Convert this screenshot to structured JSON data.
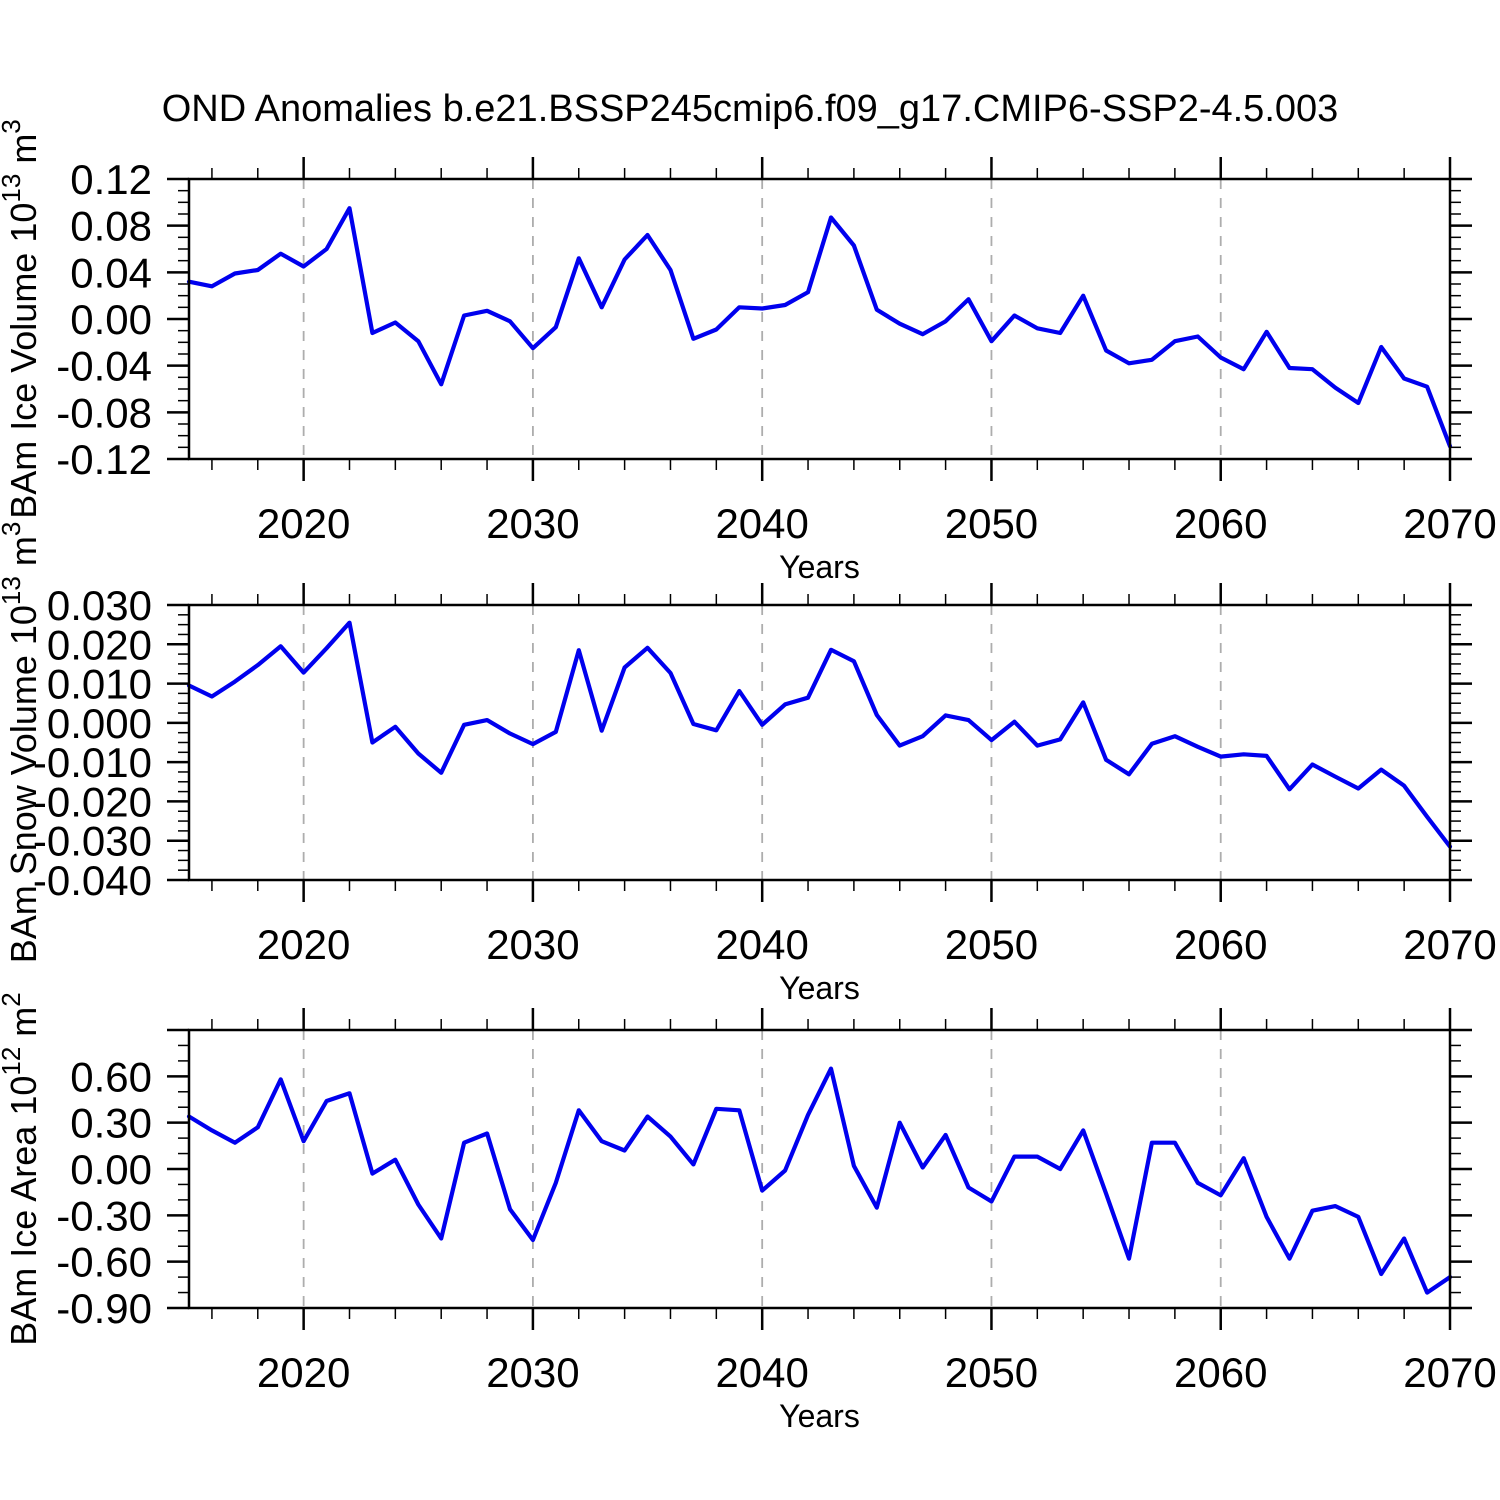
{
  "chart_data": {
    "type": "line",
    "title": "OND Anomalies b.e21.BSSP245cmip6.f09_g17.CMIP6-SSP2-4.5.003",
    "line_color": "#0000EE",
    "grid_color": "#ADADAD",
    "axis_color": "#000000",
    "legend": "none",
    "grid": "vertical-dashed-at-decades",
    "x": {
      "label": "Years",
      "start_year": 2015,
      "end_year": 2070,
      "major_tick_step": 10,
      "minor_tick_step": 2,
      "tick_labels": [
        "2020",
        "2030",
        "2040",
        "2050",
        "2060",
        "2070"
      ],
      "gridlines_at": [
        2020,
        2030,
        2040,
        2050,
        2060
      ]
    },
    "panels": [
      {
        "name": "ice-volume",
        "ylabel_parts": [
          {
            "t": "BAm Ice Volume 10"
          },
          {
            "t": "13",
            "sup": true
          },
          {
            "t": " m"
          },
          {
            "t": "3",
            "sup": true
          }
        ],
        "ymin": -0.12,
        "ymax": 0.12,
        "ytick_minor": 0.01,
        "ytick_major": 0.04,
        "ytick_labels": [
          {
            "v": 0.12,
            "label": "0.12"
          },
          {
            "v": 0.08,
            "label": "0.08"
          },
          {
            "v": 0.04,
            "label": "0.04"
          },
          {
            "v": 0.0,
            "label": "0.00"
          },
          {
            "v": -0.04,
            "label": "-0.04"
          },
          {
            "v": -0.08,
            "label": "-0.08"
          },
          {
            "v": -0.12,
            "label": "-0.12"
          }
        ],
        "values": [
          0.032,
          0.028,
          0.039,
          0.042,
          0.056,
          0.045,
          0.06,
          0.095,
          -0.012,
          -0.003,
          -0.019,
          -0.056,
          0.003,
          0.007,
          -0.002,
          -0.025,
          -0.007,
          0.052,
          0.01,
          0.051,
          0.072,
          0.042,
          -0.017,
          -0.009,
          0.01,
          0.009,
          0.012,
          0.023,
          0.087,
          0.063,
          0.008,
          -0.004,
          -0.013,
          -0.002,
          0.017,
          -0.019,
          0.003,
          -0.008,
          -0.012,
          0.02,
          -0.027,
          -0.038,
          -0.035,
          -0.019,
          -0.015,
          -0.033,
          -0.043,
          -0.011,
          -0.042,
          -0.043,
          -0.059,
          -0.072,
          -0.024,
          -0.051,
          -0.058,
          -0.109
        ]
      },
      {
        "name": "snow-volume",
        "ylabel_parts": [
          {
            "t": "BAm Snow Volume 10"
          },
          {
            "t": "13",
            "sup": true
          },
          {
            "t": " m"
          },
          {
            "t": "3",
            "sup": true
          }
        ],
        "ymin": -0.04,
        "ymax": 0.03,
        "ytick_minor": 0.0025,
        "ytick_major": 0.01,
        "ytick_labels": [
          {
            "v": 0.03,
            "label": "0.030"
          },
          {
            "v": 0.02,
            "label": "0.020"
          },
          {
            "v": 0.01,
            "label": "0.010"
          },
          {
            "v": 0.0,
            "label": "0.000"
          },
          {
            "v": -0.01,
            "label": "-0.010"
          },
          {
            "v": -0.02,
            "label": "-0.020"
          },
          {
            "v": -0.03,
            "label": "-0.030"
          },
          {
            "v": -0.04,
            "label": "-0.040"
          }
        ],
        "values": [
          0.0095,
          0.0067,
          0.0105,
          0.0147,
          0.0195,
          0.0128,
          0.019,
          0.0255,
          -0.005,
          -0.001,
          -0.0078,
          -0.0127,
          -0.0005,
          0.0007,
          -0.0027,
          -0.0054,
          -0.0023,
          0.0185,
          -0.002,
          0.0141,
          0.0191,
          0.0127,
          -0.0003,
          -0.0019,
          0.0081,
          -0.0005,
          0.0047,
          0.0064,
          0.0186,
          0.0157,
          0.002,
          -0.0058,
          -0.0034,
          0.0019,
          0.0007,
          -0.0044,
          0.0003,
          -0.0058,
          -0.0042,
          0.0052,
          -0.0094,
          -0.0131,
          -0.0053,
          -0.0034,
          -0.0061,
          -0.0086,
          -0.008,
          -0.0084,
          -0.0169,
          -0.0106,
          -0.0137,
          -0.0167,
          -0.0119,
          -0.016,
          -0.0239,
          -0.0315
        ]
      },
      {
        "name": "ice-area",
        "ylabel_parts": [
          {
            "t": "BAm Ice Area 10"
          },
          {
            "t": "12",
            "sup": true
          },
          {
            "t": " m"
          },
          {
            "t": "2",
            "sup": true
          }
        ],
        "ymin": -0.9,
        "ymax": 0.9,
        "ytick_minor": 0.1,
        "ytick_major": 0.3,
        "ytick_labels": [
          {
            "v": 0.6,
            "label": "0.60"
          },
          {
            "v": 0.3,
            "label": "0.30"
          },
          {
            "v": 0.0,
            "label": "0.00"
          },
          {
            "v": -0.3,
            "label": "-0.30"
          },
          {
            "v": -0.6,
            "label": "-0.60"
          },
          {
            "v": -0.9,
            "label": "-0.90"
          }
        ],
        "values": [
          0.34,
          0.25,
          0.17,
          0.27,
          0.58,
          0.18,
          0.44,
          0.49,
          -0.03,
          0.06,
          -0.23,
          -0.45,
          0.17,
          0.23,
          -0.26,
          -0.46,
          -0.09,
          0.38,
          0.18,
          0.12,
          0.34,
          0.21,
          0.03,
          0.39,
          0.38,
          -0.14,
          -0.01,
          0.35,
          0.65,
          0.02,
          -0.25,
          0.3,
          0.01,
          0.22,
          -0.12,
          -0.21,
          0.08,
          0.08,
          0.0,
          0.25,
          -0.16,
          -0.58,
          0.17,
          0.17,
          -0.09,
          -0.17,
          0.07,
          -0.31,
          -0.58,
          -0.27,
          -0.24,
          -0.31,
          -0.68,
          -0.45,
          -0.8,
          -0.7
        ]
      }
    ]
  }
}
